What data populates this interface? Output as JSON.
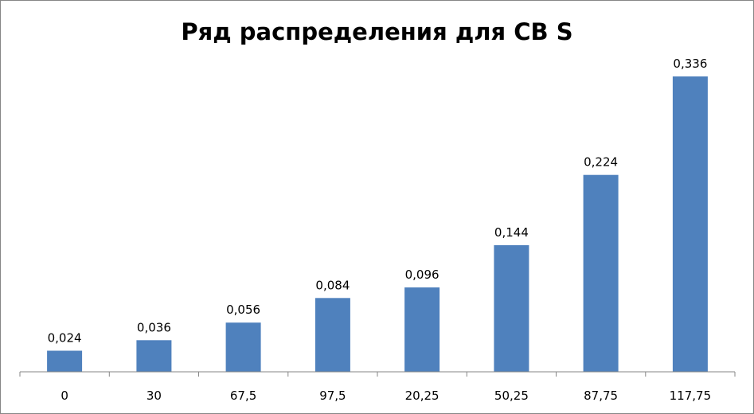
{
  "chart_data": {
    "type": "bar",
    "title": "Ряд распределения для СВ S",
    "categories": [
      "0",
      "30",
      "67,5",
      "97,5",
      "20,25",
      "50,25",
      "87,75",
      "117,75"
    ],
    "values": [
      0.024,
      0.036,
      0.056,
      0.084,
      0.096,
      0.144,
      0.224,
      0.336
    ],
    "data_labels": [
      "0,024",
      "0,036",
      "0,056",
      "0,084",
      "0,096",
      "0,144",
      "0,224",
      "0,336"
    ],
    "xlabel": "",
    "ylabel": "",
    "ylim": [
      0,
      0.336
    ],
    "grid": false,
    "legend": "none",
    "colors": {
      "bar": "#4f81bd",
      "axis": "#868686",
      "frame": "#868686"
    }
  }
}
